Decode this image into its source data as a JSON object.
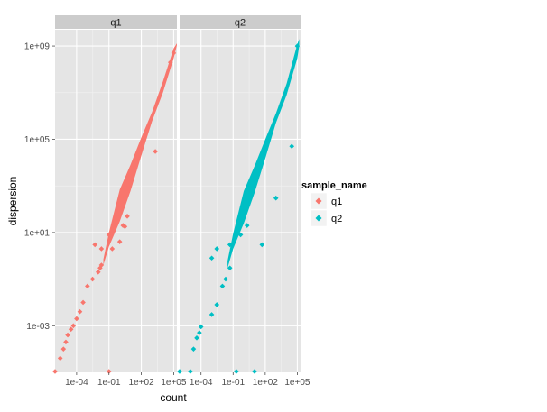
{
  "chart_data": {
    "type": "scatter",
    "facet_by": "sample_name",
    "x_scale": "log10",
    "y_scale": "log10",
    "xlabel": "count",
    "ylabel": "dispersion",
    "xlim": [
      1e-06,
      200000.0
    ],
    "ylim": [
      1e-05,
      5000000000.0
    ],
    "x_ticks": [
      {
        "value": 0.0001,
        "label": "1e-04"
      },
      {
        "value": 0.1,
        "label": "1e-01"
      },
      {
        "value": 100.0,
        "label": "1e+02"
      },
      {
        "value": 100000.0,
        "label": "1e+05"
      }
    ],
    "y_ticks": [
      {
        "value": 0.001,
        "label": "1e-03"
      },
      {
        "value": 10.0,
        "label": "1e+01"
      },
      {
        "value": 100000.0,
        "label": "1e+05"
      },
      {
        "value": 1000000000.0,
        "label": "1e+09"
      }
    ],
    "grid": true,
    "legend": {
      "title": "sample_name",
      "position": "right",
      "entries": [
        {
          "label": "q1",
          "color": "#F8766D"
        },
        {
          "label": "q2",
          "color": "#00BFC4"
        }
      ]
    },
    "panels": [
      {
        "name": "q1",
        "color": "#F8766D",
        "band": [
          [
            0.03,
            0.4,
            0.7
          ],
          [
            0.1,
            2.5,
            10
          ],
          [
            1,
            30,
            700
          ],
          [
            10,
            600,
            8000
          ],
          [
            100,
            20000.0,
            120000.0
          ],
          [
            1000,
            600000.0,
            1500000.0
          ],
          [
            10000.0,
            10000000.0,
            30000000.0
          ],
          [
            100000.0,
            300000000.0,
            800000000.0
          ],
          [
            200000.0,
            1100000000.0,
            1300000000.0
          ]
        ],
        "points": [
          [
            3e-06,
            4e-05
          ],
          [
            6e-06,
            0.0001
          ],
          [
            1e-05,
            0.0002
          ],
          [
            1.5e-05,
            0.0004
          ],
          [
            3e-05,
            0.0007
          ],
          [
            5e-05,
            0.001
          ],
          [
            0.0001,
            0.002
          ],
          [
            0.0002,
            0.004
          ],
          [
            0.0004,
            0.01
          ],
          [
            0.001,
            0.05
          ],
          [
            0.003,
            0.1
          ],
          [
            0.01,
            0.2
          ],
          [
            0.015,
            0.3
          ],
          [
            0.02,
            0.4
          ],
          [
            0.005,
            3
          ],
          [
            0.02,
            2
          ],
          [
            0.1,
            8
          ],
          [
            1,
            4
          ],
          [
            2,
            20
          ],
          [
            3,
            18
          ],
          [
            5,
            50
          ],
          [
            2000,
            30000.0
          ],
          [
            0.2,
            2
          ],
          [
            100000.0,
            500000000.0
          ],
          [
            50000.0,
            200000000.0
          ],
          [
            0.1,
            1e-05
          ],
          [
            1e-06,
            1e-05
          ]
        ]
      },
      {
        "name": "q2",
        "color": "#00BFC4",
        "band": [
          [
            0.03,
            0.3,
            0.6
          ],
          [
            0.1,
            2,
            9
          ],
          [
            1,
            25,
            600
          ],
          [
            10,
            500,
            7000
          ],
          [
            100,
            15000.0,
            100000.0
          ],
          [
            1000,
            500000.0,
            1300000.0
          ],
          [
            10000.0,
            8000000.0,
            25000000.0
          ],
          [
            100000.0,
            300000000.0,
            1200000000.0
          ],
          [
            150000.0,
            1000000000.0,
            2000000000.0
          ]
        ],
        "points": [
          [
            1e-05,
            1e-05
          ],
          [
            2e-05,
            0.0001
          ],
          [
            4e-05,
            0.0003
          ],
          [
            7e-05,
            0.0005
          ],
          [
            0.0001,
            0.0009
          ],
          [
            0.001,
            0.003
          ],
          [
            0.003,
            0.008
          ],
          [
            0.01,
            0.05
          ],
          [
            0.02,
            0.1
          ],
          [
            0.05,
            0.3
          ],
          [
            0.001,
            0.8
          ],
          [
            0.003,
            2
          ],
          [
            0.05,
            3
          ],
          [
            0.5,
            8
          ],
          [
            2,
            20
          ],
          [
            50,
            3
          ],
          [
            1000,
            300
          ],
          [
            100000.0,
            1000000000.0
          ],
          [
            30000.0,
            50000.0
          ],
          [
            0.2,
            1e-05
          ],
          [
            10,
            1e-05
          ],
          [
            1e-06,
            1e-05
          ]
        ]
      }
    ]
  }
}
